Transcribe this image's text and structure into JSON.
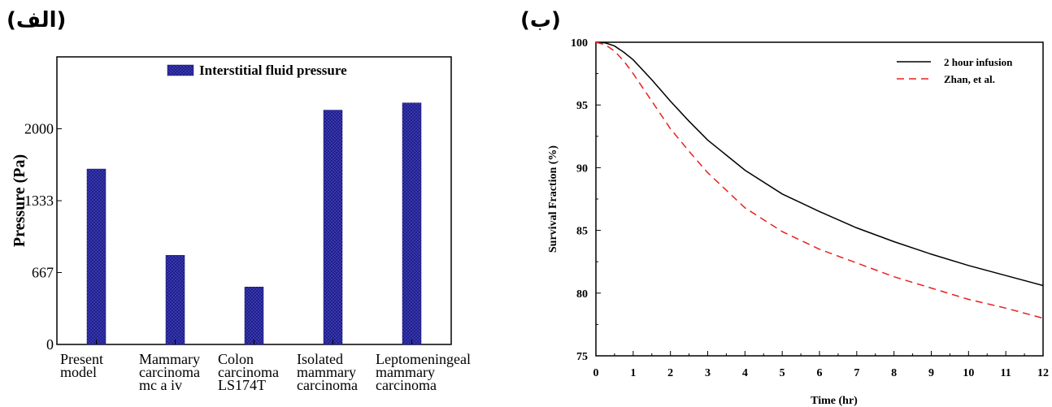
{
  "panel_labels": {
    "a": "(الف)",
    "b": "(ب)"
  },
  "colors": {
    "bar_fill": "#1a1a8c",
    "line1": "#000000",
    "line2": "#e8201e"
  },
  "chart_data": [
    {
      "type": "bar",
      "legend": "Interstitial fluid pressure",
      "ylabel": "Pressure (Pa)",
      "xlabel": "",
      "ylim": [
        0,
        2667
      ],
      "yticks": [
        "0",
        "667",
        "1333",
        "2000"
      ],
      "ytick_values": [
        0,
        667,
        1333,
        2000
      ],
      "categories": [
        [
          "Present",
          "model"
        ],
        [
          "Mammary",
          "carcinoma",
          "mc a iv"
        ],
        [
          "Colon",
          "carcinoma",
          "LS174T"
        ],
        [
          "Isolated",
          "mammary",
          "carcinoma"
        ],
        [
          "Leptomeningeal",
          "mammary",
          "carcinoma"
        ]
      ],
      "values": [
        1627,
        827,
        533,
        2173,
        2240
      ]
    },
    {
      "type": "line",
      "xlabel": "Time (hr)",
      "ylabel": "Survival Fraction (%)",
      "xlim": [
        0,
        12
      ],
      "ylim": [
        75,
        100
      ],
      "xticks": [
        0,
        1,
        2,
        3,
        4,
        5,
        6,
        7,
        8,
        9,
        10,
        11,
        12
      ],
      "yticks": [
        75,
        80,
        85,
        90,
        95,
        100
      ],
      "series": [
        {
          "name": "2 hour infusion",
          "style": "solid",
          "x": [
            0,
            0.25,
            0.5,
            0.75,
            1,
            1.5,
            2,
            2.5,
            3,
            4,
            5,
            6,
            7,
            8,
            9,
            10,
            11,
            12
          ],
          "y": [
            100,
            99.95,
            99.7,
            99.2,
            98.6,
            97.0,
            95.3,
            93.7,
            92.2,
            89.8,
            87.9,
            86.5,
            85.2,
            84.1,
            83.1,
            82.2,
            81.4,
            80.6
          ]
        },
        {
          "name": "Zhan, et al.",
          "style": "dashed",
          "x": [
            0,
            0.25,
            0.5,
            0.75,
            1,
            1.5,
            2,
            2.5,
            3,
            4,
            5,
            6,
            7,
            8,
            9,
            10,
            11,
            12
          ],
          "y": [
            100,
            99.8,
            99.3,
            98.5,
            97.5,
            95.3,
            93.1,
            91.3,
            89.6,
            86.8,
            84.9,
            83.5,
            82.4,
            81.3,
            80.4,
            79.5,
            78.8,
            78.0
          ]
        }
      ]
    }
  ]
}
